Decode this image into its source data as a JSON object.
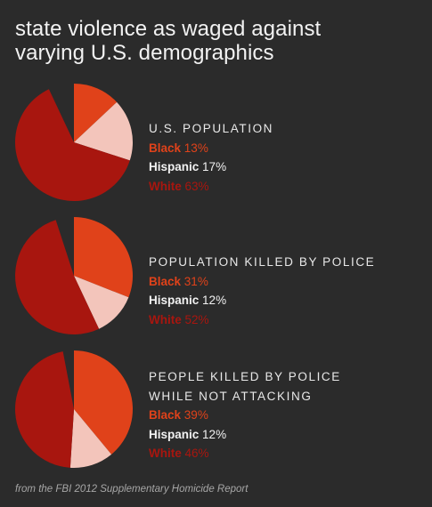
{
  "title_line1": "state violence as waged against",
  "title_line2": "varying U.S. demographics",
  "source": "from the FBI 2012 Supplementary Homicide Report",
  "colors": {
    "black": "#e0421a",
    "hispanic": "#f3c5bb",
    "white": "#a8160f",
    "background": "#2b2b2b"
  },
  "chart_data": [
    {
      "type": "pie",
      "title": "U.S. POPULATION",
      "categories": [
        "Black",
        "Hispanic",
        "White"
      ],
      "values": [
        13,
        17,
        63
      ],
      "labels": {
        "black_name": "Black",
        "black_value": "13%",
        "hispanic_name": "Hispanic",
        "hispanic_value": "17%",
        "white_name": "White",
        "white_value": "63%"
      }
    },
    {
      "type": "pie",
      "title": "POPULATION KILLED BY POLICE",
      "categories": [
        "Black",
        "Hispanic",
        "White"
      ],
      "values": [
        31,
        12,
        52
      ],
      "labels": {
        "black_name": "Black",
        "black_value": "31%",
        "hispanic_name": "Hispanic",
        "hispanic_value": "12%",
        "white_name": "White",
        "white_value": "52%"
      }
    },
    {
      "type": "pie",
      "title": "PEOPLE KILLED BY POLICE WHILE NOT ATTACKING",
      "categories": [
        "Black",
        "Hispanic",
        "White"
      ],
      "values": [
        39,
        12,
        46
      ],
      "labels": {
        "black_name": "Black",
        "black_value": "39%",
        "hispanic_name": "Hispanic",
        "hispanic_value": "12%",
        "white_name": "White",
        "white_value": "46%"
      }
    }
  ]
}
